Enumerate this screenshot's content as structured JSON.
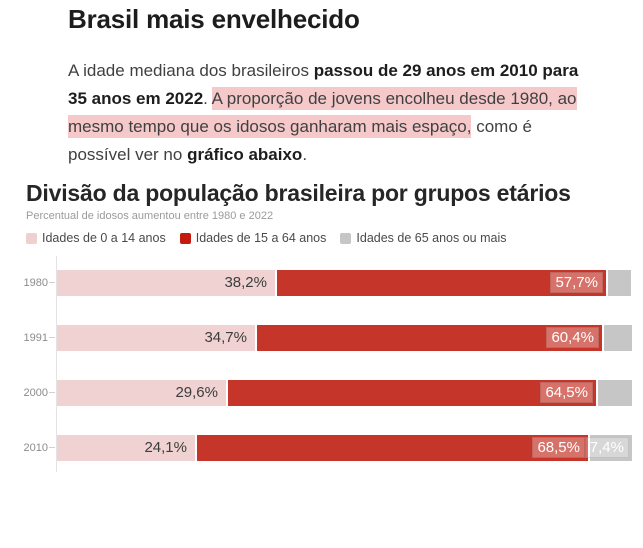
{
  "article": {
    "title": "Brasil mais envelhecido",
    "paragraph": {
      "part1": "A idade mediana dos brasileiros ",
      "bold1": "passou de 29 anos em 2010 para 35 anos em 2022",
      "part2": ". ",
      "highlight": "A proporção de jovens encolheu desde 1980, ao mesmo tempo que os idosos ganharam mais espaço,",
      "part3": " como é possível ver no ",
      "bold2": "gráfico abaixo",
      "part4": "."
    },
    "highlight_color": "#f5c9c9"
  },
  "chart_data": {
    "type": "bar",
    "orientation": "horizontal",
    "stacked": true,
    "title": "Divisão da população brasileira por grupos etários",
    "subtitle": "Percentual de idosos aumentou entre 1980 e 2022",
    "legend_position": "top",
    "grid": false,
    "xlim": [
      0,
      100
    ],
    "value_suffix": "%",
    "categories": [
      "1980",
      "1991",
      "2000",
      "2010"
    ],
    "series": [
      {
        "name": "Idades de 0 a 14 anos",
        "color": "#f0d2d2",
        "legend_color": "#f0cfcf",
        "label_style": "dark-inside",
        "values": [
          38.2,
          34.7,
          29.6,
          24.1
        ],
        "labels": [
          "38,2%",
          "34,7%",
          "29,6%",
          "24,1%"
        ]
      },
      {
        "name": "Idades de 15 a 64 anos",
        "color": "#c5352a",
        "legend_color": "#c41b10",
        "label_style": "white-boxed",
        "values": [
          57.7,
          60.4,
          64.5,
          68.5
        ],
        "labels": [
          "57,7%",
          "60,4%",
          "64,5%",
          "68,5%"
        ]
      },
      {
        "name": "Idades de 65 anos ou mais",
        "color": "#c6c6c6",
        "legend_color": "#c6c6c6",
        "label_style": "white-boxed",
        "values": [
          4.1,
          4.9,
          5.9,
          7.4
        ],
        "labels": [
          "",
          "",
          "",
          "7,4%"
        ]
      }
    ]
  }
}
